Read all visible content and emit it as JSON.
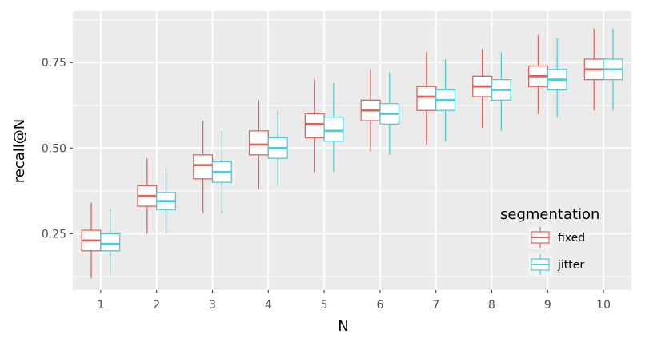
{
  "chart_data": {
    "type": "boxplot",
    "title": "",
    "xlabel": "N",
    "ylabel": "recall@N",
    "categories": [
      "1",
      "2",
      "3",
      "4",
      "5",
      "6",
      "7",
      "8",
      "9",
      "10"
    ],
    "y_ticks": [
      0.25,
      0.5,
      0.75
    ],
    "y_tick_labels": [
      "0.25",
      "0.50",
      "0.75"
    ],
    "ylim": [
      0.085,
      0.9
    ],
    "grid": true,
    "legend": {
      "title": "segmentation",
      "position": "right, inside panel, bottom"
    },
    "series": [
      {
        "name": "fixed",
        "color": "#e0635a",
        "boxes": [
          {
            "N": 1,
            "whisker_low": 0.12,
            "q1": 0.2,
            "median": 0.23,
            "q3": 0.26,
            "whisker_high": 0.34
          },
          {
            "N": 2,
            "whisker_low": 0.25,
            "q1": 0.33,
            "median": 0.36,
            "q3": 0.39,
            "whisker_high": 0.47
          },
          {
            "N": 3,
            "whisker_low": 0.31,
            "q1": 0.41,
            "median": 0.45,
            "q3": 0.48,
            "whisker_high": 0.58
          },
          {
            "N": 4,
            "whisker_low": 0.38,
            "q1": 0.48,
            "median": 0.51,
            "q3": 0.55,
            "whisker_high": 0.64
          },
          {
            "N": 5,
            "whisker_low": 0.43,
            "q1": 0.53,
            "median": 0.57,
            "q3": 0.6,
            "whisker_high": 0.7
          },
          {
            "N": 6,
            "whisker_low": 0.49,
            "q1": 0.58,
            "median": 0.61,
            "q3": 0.64,
            "whisker_high": 0.73
          },
          {
            "N": 7,
            "whisker_low": 0.51,
            "q1": 0.61,
            "median": 0.65,
            "q3": 0.68,
            "whisker_high": 0.78
          },
          {
            "N": 8,
            "whisker_low": 0.56,
            "q1": 0.65,
            "median": 0.68,
            "q3": 0.71,
            "whisker_high": 0.79
          },
          {
            "N": 9,
            "whisker_low": 0.6,
            "q1": 0.68,
            "median": 0.71,
            "q3": 0.74,
            "whisker_high": 0.83
          },
          {
            "N": 10,
            "whisker_low": 0.61,
            "q1": 0.7,
            "median": 0.73,
            "q3": 0.76,
            "whisker_high": 0.85
          }
        ]
      },
      {
        "name": "jitter",
        "color": "#4ecbd4",
        "boxes": [
          {
            "N": 1,
            "whisker_low": 0.13,
            "q1": 0.2,
            "median": 0.22,
            "q3": 0.25,
            "whisker_high": 0.32
          },
          {
            "N": 2,
            "whisker_low": 0.25,
            "q1": 0.32,
            "median": 0.345,
            "q3": 0.37,
            "whisker_high": 0.44
          },
          {
            "N": 3,
            "whisker_low": 0.31,
            "q1": 0.4,
            "median": 0.43,
            "q3": 0.46,
            "whisker_high": 0.55
          },
          {
            "N": 4,
            "whisker_low": 0.39,
            "q1": 0.47,
            "median": 0.5,
            "q3": 0.53,
            "whisker_high": 0.61
          },
          {
            "N": 5,
            "whisker_low": 0.43,
            "q1": 0.52,
            "median": 0.55,
            "q3": 0.59,
            "whisker_high": 0.69
          },
          {
            "N": 6,
            "whisker_low": 0.48,
            "q1": 0.57,
            "median": 0.6,
            "q3": 0.63,
            "whisker_high": 0.72
          },
          {
            "N": 7,
            "whisker_low": 0.52,
            "q1": 0.61,
            "median": 0.64,
            "q3": 0.67,
            "whisker_high": 0.76
          },
          {
            "N": 8,
            "whisker_low": 0.55,
            "q1": 0.64,
            "median": 0.67,
            "q3": 0.7,
            "whisker_high": 0.78
          },
          {
            "N": 9,
            "whisker_low": 0.59,
            "q1": 0.67,
            "median": 0.7,
            "q3": 0.73,
            "whisker_high": 0.82
          },
          {
            "N": 10,
            "whisker_low": 0.61,
            "q1": 0.7,
            "median": 0.73,
            "q3": 0.76,
            "whisker_high": 0.85
          }
        ]
      }
    ],
    "panel_background": "#ebebeb",
    "grid_color": "#ffffff"
  }
}
